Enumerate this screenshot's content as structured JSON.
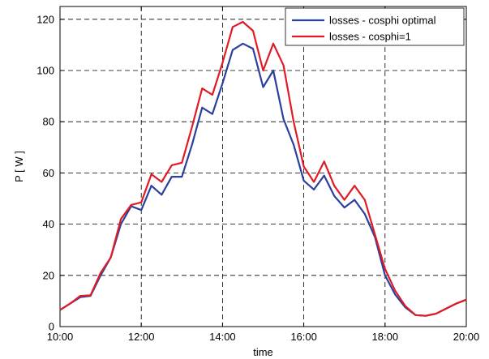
{
  "chart_data": {
    "type": "line",
    "title": "",
    "xlabel": "time",
    "ylabel": "P [ W ]",
    "x_tick_labels": [
      "10:00",
      "12:00",
      "14:00",
      "16:00",
      "18:00",
      "20:00"
    ],
    "y_tick_labels": [
      "0",
      "20",
      "40",
      "60",
      "80",
      "100",
      "120"
    ],
    "xlim": [
      "10:00",
      "20:00"
    ],
    "ylim": [
      0,
      125
    ],
    "grid": true,
    "legend_position": "top-right",
    "x": [
      "10:00",
      "10:15",
      "10:30",
      "10:45",
      "11:00",
      "11:15",
      "11:30",
      "11:45",
      "12:00",
      "12:15",
      "12:30",
      "12:45",
      "13:00",
      "13:15",
      "13:30",
      "13:45",
      "14:00",
      "14:15",
      "14:30",
      "14:45",
      "15:00",
      "15:15",
      "15:30",
      "15:45",
      "16:00",
      "16:15",
      "16:30",
      "16:45",
      "17:00",
      "17:15",
      "17:30",
      "17:45",
      "18:00",
      "18:15",
      "18:30",
      "18:45",
      "19:00",
      "19:15",
      "19:30",
      "19:45",
      "20:00"
    ],
    "series": [
      {
        "name": "losses - cosphi optimal",
        "color": "#2b3f9e",
        "values": [
          6.5,
          9,
          11.5,
          12,
          20,
          27,
          40,
          47,
          45.5,
          55,
          51.5,
          58.5,
          58.5,
          71,
          85.5,
          83,
          95,
          108,
          110.5,
          108.5,
          93.5,
          100,
          81,
          71,
          57,
          53.5,
          59,
          51,
          46.5,
          49.5,
          44,
          35,
          20,
          12.5,
          7.5,
          4.5,
          4.2,
          5,
          7,
          9,
          10.5
        ]
      },
      {
        "name": "losses - cosphi=1",
        "color": "#e01b24",
        "values": [
          6.5,
          9,
          12,
          12.2,
          21,
          27,
          42,
          47.5,
          48.5,
          59.5,
          56.5,
          63,
          64,
          78,
          93,
          90.5,
          103,
          117,
          119,
          115.5,
          100,
          110.5,
          102,
          80,
          62.5,
          56.5,
          64.5,
          55,
          49.5,
          55,
          49.5,
          36,
          22.5,
          14,
          8,
          4.5,
          4.2,
          5,
          7,
          9,
          10.5
        ]
      }
    ]
  }
}
